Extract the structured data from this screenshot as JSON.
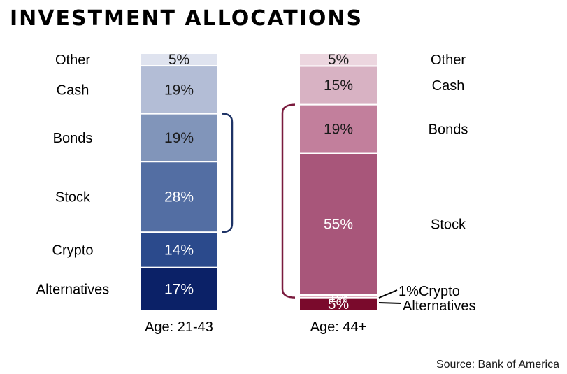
{
  "chart_data": {
    "type": "bar",
    "stacked": true,
    "title": "INVESTMENT ALLOCATIONS",
    "source": "Source: Bank of America",
    "categories": [
      "Age: 21-43",
      "Age: 44+"
    ],
    "series": [
      {
        "name": "Alternatives",
        "values": [
          17,
          5
        ],
        "colors": [
          "#0b2167",
          "#7a0a2c"
        ],
        "label_colors": [
          "#ffffff",
          "#ffffff"
        ]
      },
      {
        "name": "Crypto",
        "values": [
          14,
          1
        ],
        "colors": [
          "#2b4a8c",
          "#c87d98"
        ],
        "label_colors": [
          "#ffffff",
          "#ffffff"
        ]
      },
      {
        "name": "Stock",
        "values": [
          28,
          55
        ],
        "colors": [
          "#536ea3",
          "#a8567a"
        ],
        "label_colors": [
          "#ffffff",
          "#ffffff"
        ]
      },
      {
        "name": "Bonds",
        "values": [
          19,
          19
        ],
        "colors": [
          "#8195ba",
          "#c27f9c"
        ],
        "label_colors": [
          "#1a1a1a",
          "#1a1a1a"
        ]
      },
      {
        "name": "Cash",
        "values": [
          19,
          15
        ],
        "colors": [
          "#b3bdd6",
          "#d8b2c3"
        ],
        "label_colors": [
          "#1a1a1a",
          "#1a1a1a"
        ]
      },
      {
        "name": "Other",
        "values": [
          5,
          5
        ],
        "colors": [
          "#dfe3ef",
          "#ecd6df"
        ],
        "label_colors": [
          "#1a1a1a",
          "#1a1a1a"
        ]
      }
    ],
    "value_suffix": "%",
    "bracket_colors": [
      "#1e3366",
      "#7a1a3d"
    ]
  }
}
